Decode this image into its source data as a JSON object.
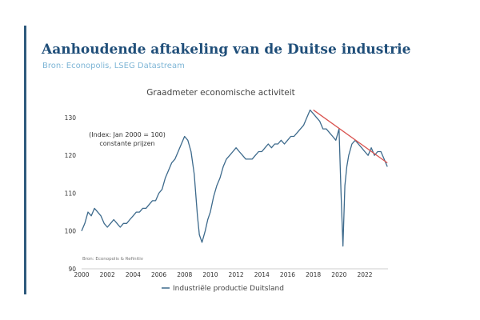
{
  "header": {
    "title": "Aanhoudende aftakeling van de Duitse industrie",
    "subtitle": "Bron: Econopolis, LSEG Datastream"
  },
  "colors": {
    "accent_bar": "#2e5a7d",
    "title": "#1f4e79",
    "subtitle": "#7fb6d6",
    "series": "#3d6a8c",
    "trend": "#d9534f"
  },
  "chart_data": {
    "type": "line",
    "title": "Graadmeter economische activiteit",
    "annotation": [
      "(Index: Jan 2000 = 100)",
      "constante prijzen"
    ],
    "source_note": "Bron: Econopolis & Refinitiv",
    "xlabel": "",
    "ylabel": "",
    "xlim": [
      2000,
      2023.8
    ],
    "ylim": [
      90,
      134
    ],
    "x_ticks": [
      2000,
      2002,
      2004,
      2006,
      2008,
      2010,
      2012,
      2014,
      2016,
      2018,
      2020,
      2022
    ],
    "y_ticks": [
      90,
      100,
      110,
      120,
      130
    ],
    "grid": false,
    "legend": "bottom",
    "series": [
      {
        "name": "Industriële productie Duitsland",
        "x": [
          2000.0,
          2000.25,
          2000.5,
          2000.75,
          2001.0,
          2001.25,
          2001.5,
          2001.75,
          2002.0,
          2002.25,
          2002.5,
          2002.75,
          2003.0,
          2003.25,
          2003.5,
          2003.75,
          2004.0,
          2004.25,
          2004.5,
          2004.75,
          2005.0,
          2005.25,
          2005.5,
          2005.75,
          2006.0,
          2006.25,
          2006.5,
          2006.75,
          2007.0,
          2007.25,
          2007.5,
          2007.75,
          2008.0,
          2008.25,
          2008.5,
          2008.75,
          2009.0,
          2009.15,
          2009.35,
          2009.6,
          2009.8,
          2010.0,
          2010.25,
          2010.5,
          2010.75,
          2011.0,
          2011.25,
          2011.5,
          2011.75,
          2012.0,
          2012.25,
          2012.5,
          2012.75,
          2013.0,
          2013.25,
          2013.5,
          2013.75,
          2014.0,
          2014.25,
          2014.5,
          2014.75,
          2015.0,
          2015.25,
          2015.5,
          2015.75,
          2016.0,
          2016.25,
          2016.5,
          2016.75,
          2017.0,
          2017.25,
          2017.5,
          2017.75,
          2018.0,
          2018.25,
          2018.5,
          2018.75,
          2019.0,
          2019.25,
          2019.5,
          2019.75,
          2020.0,
          2020.15,
          2020.3,
          2020.45,
          2020.6,
          2020.75,
          2021.0,
          2021.25,
          2021.5,
          2021.75,
          2022.0,
          2022.25,
          2022.5,
          2022.75,
          2023.0,
          2023.25,
          2023.5,
          2023.75
        ],
        "values": [
          100,
          102,
          105,
          104,
          106,
          105,
          104,
          102,
          101,
          102,
          103,
          102,
          101,
          102,
          102,
          103,
          104,
          105,
          105,
          106,
          106,
          107,
          108,
          108,
          110,
          111,
          114,
          116,
          118,
          119,
          121,
          123,
          125,
          124,
          121,
          115,
          104,
          99,
          97,
          100,
          103,
          105,
          109,
          112,
          114,
          117,
          119,
          120,
          121,
          122,
          121,
          120,
          119,
          119,
          119,
          120,
          121,
          121,
          122,
          123,
          122,
          123,
          123,
          124,
          123,
          124,
          125,
          125,
          126,
          127,
          128,
          130,
          132,
          131,
          130,
          129,
          127,
          127,
          126,
          125,
          124,
          127,
          110,
          96,
          112,
          117,
          120,
          123,
          124,
          123,
          122,
          121,
          120,
          122,
          120,
          121,
          121,
          119,
          117
        ]
      },
      {
        "name": "",
        "style": "trendline",
        "x": [
          2018.0,
          2023.75
        ],
        "values": [
          132,
          118
        ]
      }
    ]
  }
}
